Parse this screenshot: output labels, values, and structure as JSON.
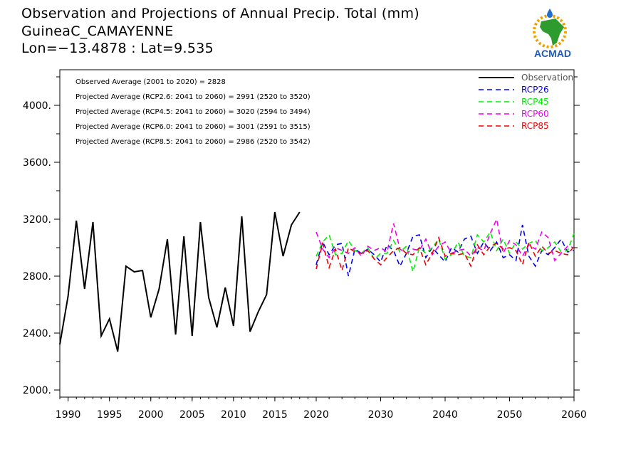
{
  "header": {
    "title": "Observation and Projections of Annual Precip. Total (mm)",
    "station": "GuineaC_CAMAYENNE",
    "coords": "Lon=−13.4878 : Lat=9.535"
  },
  "logo": {
    "text": "ACMAD",
    "icon": "africa-map-logo"
  },
  "colors": {
    "Observation": "#000000",
    "RCP26": "#0000ee",
    "RCP45": "#00ee00",
    "RCP60": "#ee00ee",
    "RCP85": "#ee0000"
  },
  "stats": [
    "Observed Average (2001 to 2020) = 2828",
    "Projected Average (RCP2.6: 2041 to 2060) = 2991 (2520 to 3520)",
    "Projected Average (RCP4.5: 2041 to 2060) = 3020 (2594 to 3494)",
    "Projected Average (RCP6.0: 2041 to 2060) = 3001 (2591 to 3515)",
    "Projected Average (RCP8.5: 2041 to 2060) = 2986 (2520 to 3542)"
  ],
  "chart_data": {
    "type": "line",
    "x_ticks": [
      1990,
      1995,
      2000,
      2005,
      2010,
      2015,
      2020,
      2030,
      2040,
      2050,
      2060
    ],
    "y_ticks": [
      "2000.",
      "2400.",
      "2800.",
      "3200.",
      "3600.",
      "4000."
    ],
    "ylim": [
      1950,
      4250
    ],
    "grid": false,
    "legend_position": "top-right",
    "series": [
      {
        "name": "Observation",
        "style": "solid",
        "x": [
          1989,
          1990,
          1991,
          1992,
          1993,
          1994,
          1995,
          1996,
          1997,
          1998,
          1999,
          2000,
          2001,
          2002,
          2003,
          2004,
          2005,
          2006,
          2007,
          2008,
          2009,
          2010,
          2011,
          2012,
          2013,
          2014,
          2015,
          2016,
          2017,
          2018,
          2019,
          2020
        ],
        "y": [
          2320,
          2660,
          3190,
          2710,
          3180,
          2380,
          2500,
          2270,
          2870,
          2830,
          2840,
          2510,
          2710,
          3060,
          2390,
          3080,
          2380,
          3180,
          2650,
          2440,
          2720,
          2450,
          3220,
          2410,
          2550,
          2670,
          3250,
          2940,
          3160,
          3250,
          null,
          null
        ]
      },
      {
        "name": "RCP26",
        "style": "dashed",
        "x": [
          2020,
          2021,
          2022,
          2023,
          2024,
          2025,
          2026,
          2027,
          2028,
          2029,
          2030,
          2031,
          2032,
          2033,
          2034,
          2035,
          2036,
          2037,
          2038,
          2039,
          2040,
          2041,
          2042,
          2043,
          2044,
          2045,
          2046,
          2047,
          2048,
          2049,
          2050,
          2051,
          2052,
          2053,
          2054,
          2055,
          2056,
          2057,
          2058,
          2059,
          2060
        ],
        "y": [
          2880,
          3040,
          2950,
          3020,
          3030,
          2800,
          2990,
          2960,
          2990,
          2950,
          2900,
          3020,
          2980,
          2870,
          2960,
          3080,
          3090,
          2930,
          3000,
          2950,
          2900,
          3000,
          2970,
          3060,
          3080,
          2960,
          3040,
          2980,
          3040,
          2930,
          2950,
          2910,
          3160,
          2940,
          2870,
          2980,
          2950,
          3000,
          3060,
          2970,
          2980
        ]
      },
      {
        "name": "RCP45",
        "style": "dashed",
        "x": [
          2020,
          2021,
          2022,
          2023,
          2024,
          2025,
          2026,
          2027,
          2028,
          2029,
          2030,
          2031,
          2032,
          2033,
          2034,
          2035,
          2036,
          2037,
          2038,
          2039,
          2040,
          2041,
          2042,
          2043,
          2044,
          2045,
          2046,
          2047,
          2048,
          2049,
          2050,
          2051,
          2052,
          2053,
          2054,
          2055,
          2056,
          2057,
          2058,
          2059,
          2060
        ],
        "y": [
          2940,
          3040,
          3090,
          2950,
          2960,
          3050,
          2980,
          2960,
          3000,
          2920,
          2960,
          2960,
          3050,
          2970,
          3010,
          2830,
          3000,
          2960,
          3000,
          3060,
          2920,
          2950,
          3040,
          2940,
          2930,
          3090,
          3040,
          3110,
          2980,
          3060,
          2960,
          3040,
          2990,
          3030,
          3050,
          2980,
          3000,
          3040,
          2970,
          2980,
          3100
        ]
      },
      {
        "name": "RCP60",
        "style": "dashed",
        "x": [
          2020,
          2021,
          2022,
          2023,
          2024,
          2025,
          2026,
          2027,
          2028,
          2029,
          2030,
          2031,
          2032,
          2033,
          2034,
          2035,
          2036,
          2037,
          2038,
          2039,
          2040,
          2041,
          2042,
          2043,
          2044,
          2045,
          2046,
          2047,
          2048,
          2049,
          2050,
          2051,
          2052,
          2053,
          2054,
          2055,
          2056,
          2057,
          2058,
          2059,
          2060
        ],
        "y": [
          3110,
          2990,
          2930,
          3000,
          2980,
          2960,
          3000,
          2940,
          3010,
          2980,
          3000,
          2970,
          3170,
          2990,
          2960,
          2990,
          2980,
          3060,
          2950,
          3010,
          3040,
          2960,
          2980,
          2990,
          2940,
          3000,
          2980,
          3100,
          3200,
          2960,
          3050,
          3020,
          2940,
          3020,
          2990,
          3110,
          3070,
          2910,
          2960,
          3010,
          3000
        ]
      },
      {
        "name": "RCP85",
        "style": "dashed",
        "x": [
          2020,
          2021,
          2022,
          2023,
          2024,
          2025,
          2026,
          2027,
          2028,
          2029,
          2030,
          2031,
          2032,
          2033,
          2034,
          2035,
          2036,
          2037,
          2038,
          2039,
          2040,
          2041,
          2042,
          2043,
          2044,
          2045,
          2046,
          2047,
          2048,
          2049,
          2050,
          2051,
          2052,
          2053,
          2054,
          2055,
          2056,
          2057,
          2058,
          2059,
          2060
        ],
        "y": [
          2850,
          3030,
          2860,
          2990,
          2840,
          3000,
          2970,
          2960,
          2980,
          2920,
          2880,
          2930,
          2980,
          3000,
          2960,
          2950,
          3000,
          2880,
          2960,
          3070,
          2940,
          2960,
          2950,
          2960,
          2870,
          3020,
          2950,
          3010,
          3030,
          2990,
          3000,
          2980,
          2880,
          3040,
          2940,
          3010,
          2960,
          2980,
          2960,
          2950,
          3010
        ]
      }
    ]
  }
}
